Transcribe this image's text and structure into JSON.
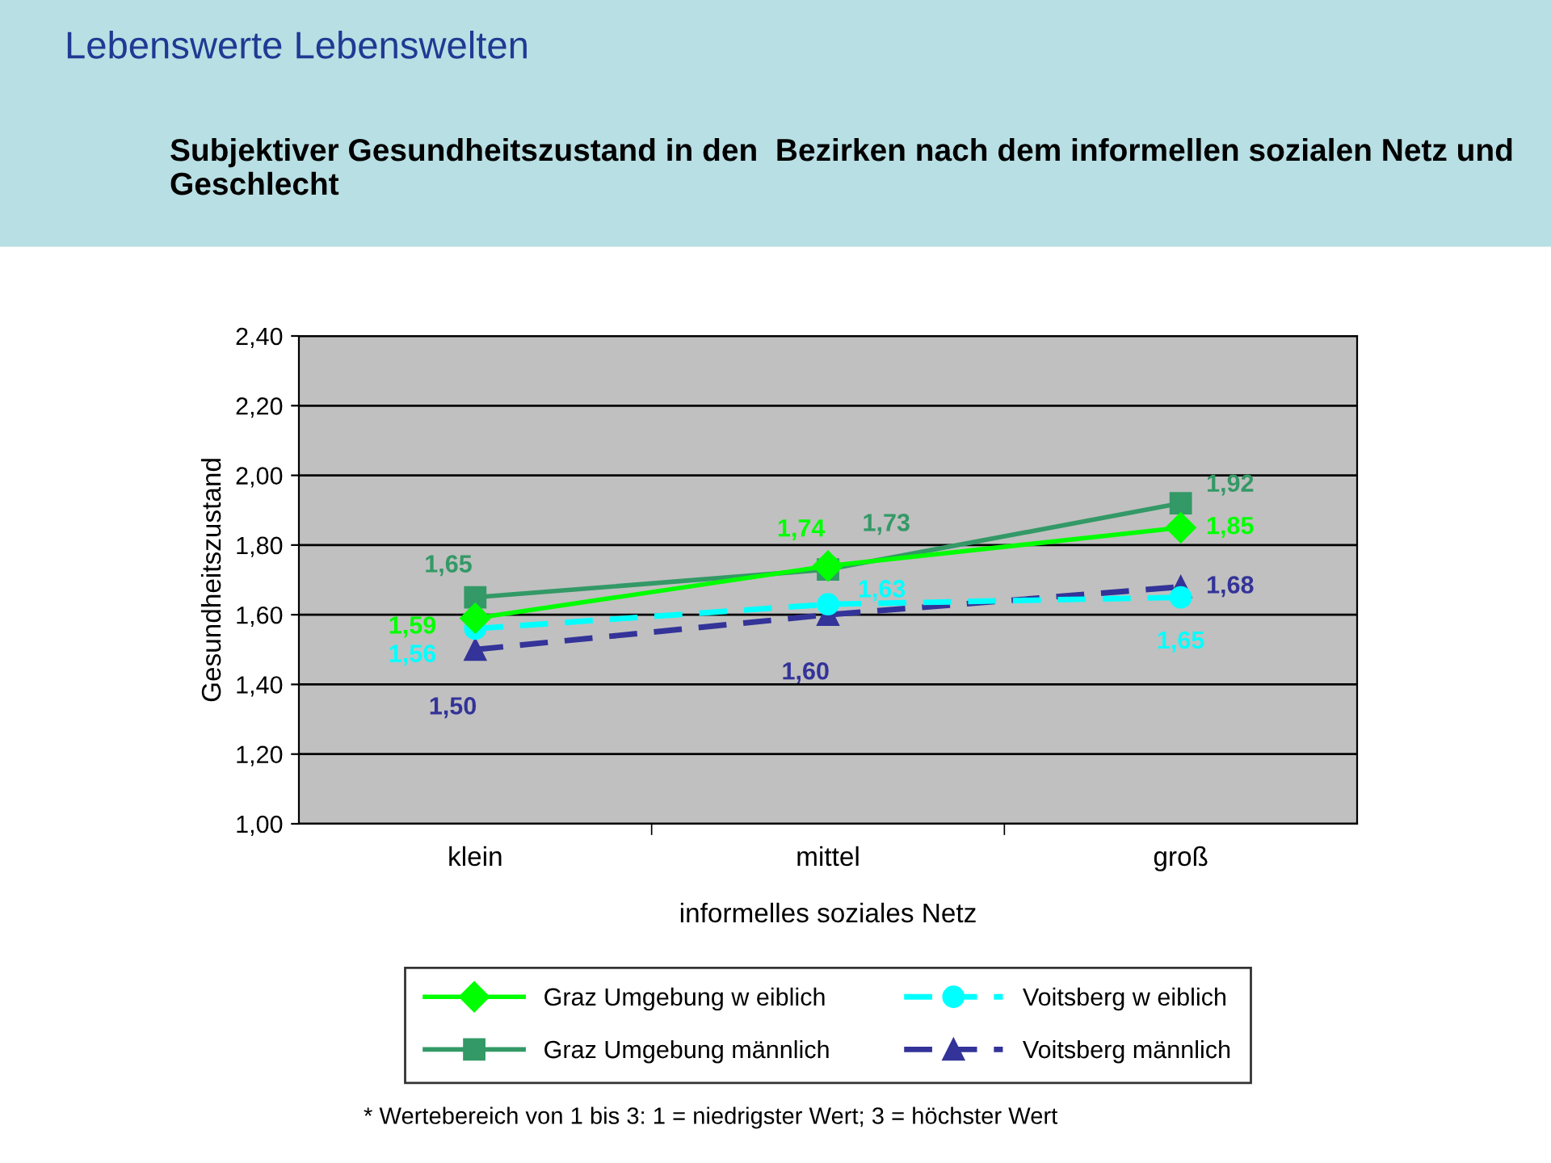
{
  "chart_data": {
    "type": "line",
    "title": "Lebenswerte Lebenswelten",
    "subtitle": "Subjektiver Gesundheitszustand in den  Bezirken nach dem informellen sozialen Netz und Geschlecht",
    "xlabel": "informelles soziales Netz",
    "ylabel": "Gesundheitszustand",
    "categories": [
      "klein",
      "mittel",
      "groß"
    ],
    "series": [
      {
        "name": "Graz Umgebung w eiblich",
        "color": "#00ff00",
        "marker": "diamond",
        "line_style": "solid",
        "values": [
          1.59,
          1.74,
          1.85
        ],
        "value_labels": [
          "1,59",
          "1,74",
          "1,85"
        ]
      },
      {
        "name": "Graz Umgebung männlich",
        "color": "#339966",
        "marker": "square",
        "line_style": "solid",
        "values": [
          1.65,
          1.73,
          1.92
        ],
        "value_labels": [
          "1,65",
          "1,73",
          "1,92"
        ]
      },
      {
        "name": "Voitsberg w eiblich",
        "color": "#00ffff",
        "marker": "circle",
        "line_style": "dashed",
        "values": [
          1.56,
          1.63,
          1.65
        ],
        "value_labels": [
          "1,56",
          "1,63",
          "1,65"
        ]
      },
      {
        "name": "Voitsberg männlich",
        "color": "#333399",
        "marker": "triangle",
        "line_style": "dashed",
        "values": [
          1.5,
          1.6,
          1.68
        ],
        "value_labels": [
          "1,50",
          "1,60",
          "1,68"
        ]
      }
    ],
    "ylim": [
      1.0,
      2.4
    ],
    "yticks": [
      {
        "value": 1.0,
        "label": "1,00"
      },
      {
        "value": 1.2,
        "label": "1,20"
      },
      {
        "value": 1.4,
        "label": "1,40"
      },
      {
        "value": 1.6,
        "label": "1,60"
      },
      {
        "value": 1.8,
        "label": "1,80"
      },
      {
        "value": 2.0,
        "label": "2,00"
      },
      {
        "value": 2.2,
        "label": "2,20"
      },
      {
        "value": 2.4,
        "label": "2,40"
      }
    ],
    "grid": "y",
    "legend": "bottom",
    "annotations": [
      "* Wertebereich von 1 bis 3: 1 = niedrigster Wert; 3 = höchster Wert"
    ]
  }
}
